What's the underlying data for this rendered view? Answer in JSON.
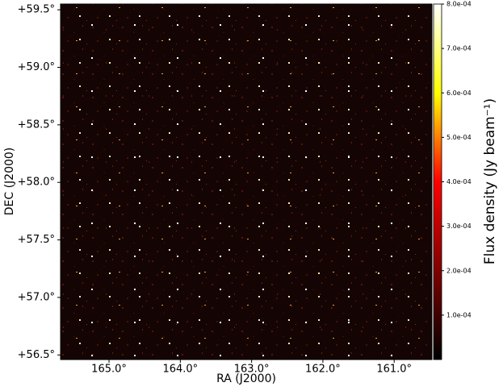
{
  "chart_data": {
    "type": "image",
    "xlabel": "RA (J2000)",
    "ylabel": "DEC (J2000)",
    "colorbar_label": "Flux density (Jy beam⁻¹)",
    "colormap": "afmhot",
    "xlim": [
      165.68,
      160.47
    ],
    "ylim": [
      56.46,
      59.55
    ],
    "clim": [
      0,
      0.0008
    ],
    "xticks": [
      {
        "value": 165,
        "label": "165.0°"
      },
      {
        "value": 164,
        "label": "164.0°"
      },
      {
        "value": 163,
        "label": "163.0°"
      },
      {
        "value": 162,
        "label": "162.0°"
      },
      {
        "value": 161,
        "label": "161.0°"
      }
    ],
    "yticks": [
      {
        "value": 56.5,
        "label": "+56.5°"
      },
      {
        "value": 57,
        "label": "+57.0°"
      },
      {
        "value": 57.5,
        "label": "+57.5°"
      },
      {
        "value": 58,
        "label": "+58.0°"
      },
      {
        "value": 58.5,
        "label": "+58.5°"
      },
      {
        "value": 59,
        "label": "+59.0°"
      },
      {
        "value": 59.5,
        "label": "+59.5°"
      }
    ],
    "cticks": [
      {
        "value": 0.0001,
        "label": "1.0e-04"
      },
      {
        "value": 0.0002,
        "label": "2.0e-04"
      },
      {
        "value": 0.0003,
        "label": "3.0e-04"
      },
      {
        "value": 0.0004,
        "label": "4.0e-04"
      },
      {
        "value": 0.0005,
        "label": "5.0e-04"
      },
      {
        "value": 0.0006,
        "label": "6.0e-04"
      },
      {
        "value": 0.0007,
        "label": "7.0e-04"
      },
      {
        "value": 0.0008,
        "label": "8.0e-04"
      }
    ]
  }
}
